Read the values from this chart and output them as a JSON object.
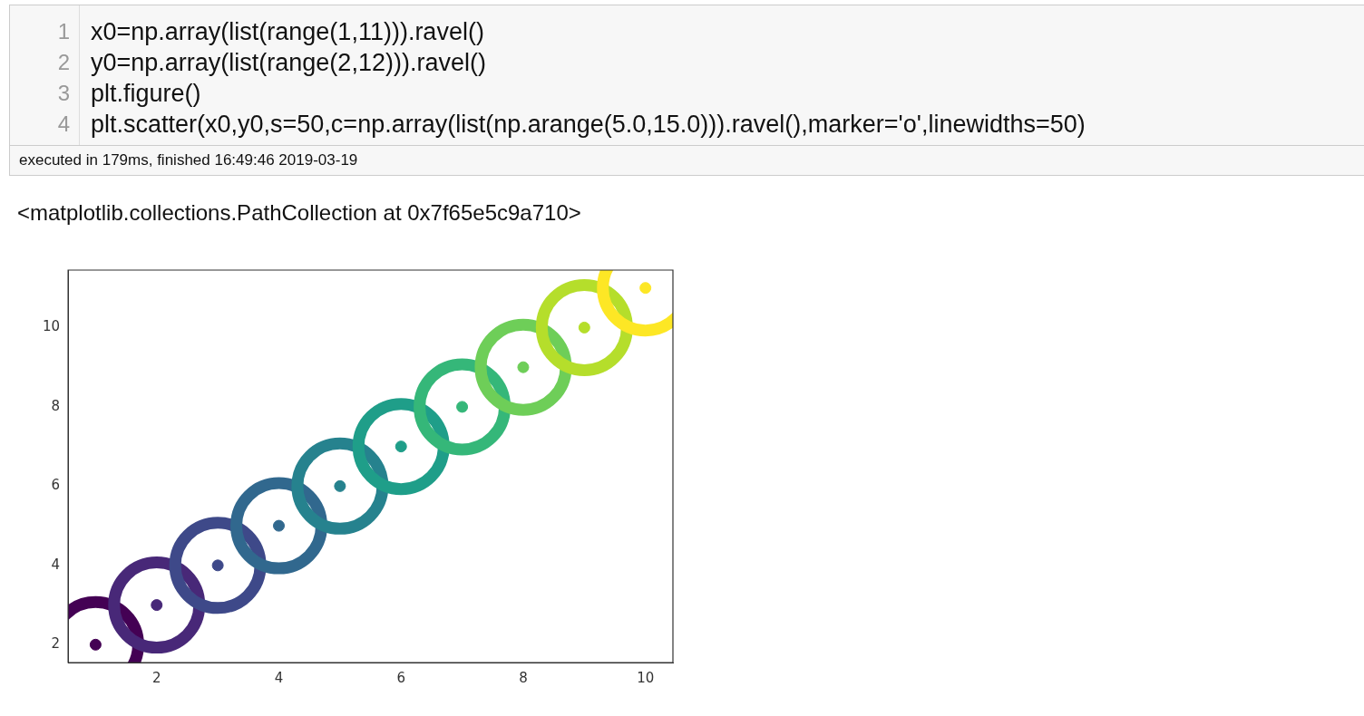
{
  "chart_data": {
    "type": "scatter",
    "x": [
      1,
      2,
      3,
      4,
      5,
      6,
      7,
      8,
      9,
      10
    ],
    "values": [
      2,
      3,
      4,
      5,
      6,
      7,
      8,
      9,
      10,
      11
    ],
    "colors": [
      "#440154",
      "#482878",
      "#3e4989",
      "#31688e",
      "#26828e",
      "#1f9e89",
      "#35b779",
      "#6ece58",
      "#b5de2b",
      "#fde725"
    ],
    "marker": "circle",
    "xlim": [
      0.55,
      10.45
    ],
    "ylim": [
      1.55,
      11.45
    ],
    "xticks": [
      2,
      4,
      6,
      8,
      10
    ],
    "yticks": [
      2,
      4,
      6,
      8,
      10
    ],
    "grid": false,
    "legend": false,
    "annotations": [
      "1",
      "2",
      "3",
      "4",
      "x0=np.array(list(range(1,11))).ravel()",
      "y0=np.array(list(range(2,12))).ravel()",
      "plt.figure()",
      "plt.scatter(x0,y0,s=50,c=np.array(list(np.arange(5.0,15.0))).ravel(),marker='o',linewidths=50)",
      "executed in 179ms, finished 16:49:46 2019-03-19",
      "<matplotlib.collections.PathCollection at 0x7f65e5c9a710>"
    ]
  }
}
